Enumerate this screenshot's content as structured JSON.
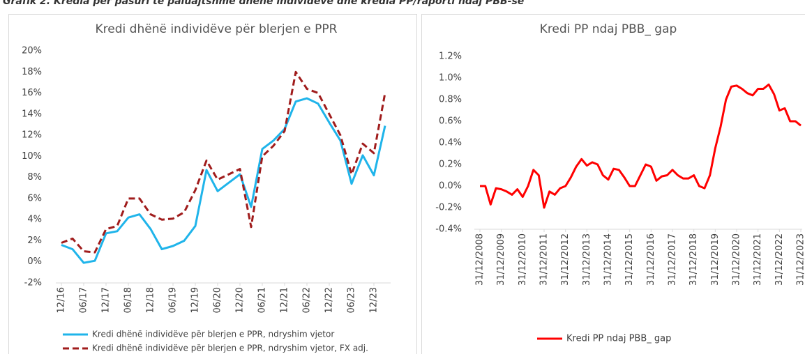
{
  "caption": "Grafik 2. Kredia për pasuri të paluajtshme dhënë individëve dhe kredia PP/raporti ndaj PBB-së",
  "chart_data": [
    {
      "type": "line",
      "title": "Kredi dhënë individëve për blerjen e PPR",
      "categories": [
        "12/16",
        null,
        "06/17",
        null,
        "12/17",
        null,
        "06/18",
        null,
        "12/18",
        null,
        "06/19",
        null,
        "12/19",
        null,
        "06/20",
        null,
        "12/20",
        null,
        "06/21",
        null,
        "12/21",
        null,
        "06/22",
        null,
        "12/22",
        null,
        "06/23",
        null,
        "12/23",
        null
      ],
      "series": [
        {
          "name": "Kredi dhënë individëve për blerjen e PPR, ndryshim vjetor",
          "color": "#1fb4ea",
          "line_style": "solid",
          "values": [
            1.6,
            1.2,
            -0.1,
            0.1,
            2.7,
            2.9,
            4.2,
            4.5,
            3.1,
            1.2,
            1.5,
            2.0,
            3.4,
            8.7,
            6.7,
            7.5,
            8.3,
            5.2,
            10.7,
            11.5,
            12.6,
            15.2,
            15.5,
            15.0,
            13.2,
            11.5,
            7.4,
            10.1,
            8.2,
            12.9
          ]
        },
        {
          "name": "Kredi dhënë individëve për blerjen e PPR, ndryshim vjetor, FX adj.",
          "color": "#a01c1c",
          "line_style": "dashed",
          "values": [
            1.8,
            2.2,
            1.0,
            0.9,
            3.1,
            3.4,
            6.0,
            6.0,
            4.5,
            4.0,
            4.1,
            4.7,
            6.8,
            9.6,
            7.8,
            8.3,
            8.8,
            3.3,
            10.0,
            11.0,
            12.4,
            18.0,
            16.4,
            16.0,
            14.0,
            12.0,
            8.3,
            11.2,
            10.3,
            16.0
          ]
        }
      ],
      "ylim": [
        -2,
        20
      ],
      "yticks": [
        {
          "value": -2,
          "label": "-2%"
        },
        {
          "value": 0,
          "label": "0%"
        },
        {
          "value": 2,
          "label": "2%"
        },
        {
          "value": 4,
          "label": "4%"
        },
        {
          "value": 6,
          "label": "6%"
        },
        {
          "value": 8,
          "label": "8%"
        },
        {
          "value": 10,
          "label": "10%"
        },
        {
          "value": 12,
          "label": "12%"
        },
        {
          "value": 14,
          "label": "14%"
        },
        {
          "value": 16,
          "label": "16%"
        },
        {
          "value": 18,
          "label": "18%"
        },
        {
          "value": 20,
          "label": "20%"
        }
      ],
      "grid": false,
      "legend": "bottom"
    },
    {
      "type": "line",
      "title": "Kredi PP ndaj PBB_ gap",
      "categories": [
        "31/12/2008",
        null,
        null,
        null,
        "31/12/2009",
        null,
        null,
        null,
        "31/12/2010",
        null,
        null,
        null,
        "31/12/2011",
        null,
        null,
        null,
        "31/12/2012",
        null,
        null,
        null,
        "31/12/2013",
        null,
        null,
        null,
        "31/12/2014",
        null,
        null,
        null,
        "31/12/2015",
        null,
        null,
        null,
        "31/12/2016",
        null,
        null,
        null,
        "31/12/2017",
        null,
        null,
        null,
        "31/12/2018",
        null,
        null,
        null,
        "31/12/2019",
        null,
        null,
        null,
        "31/12/2020",
        null,
        null,
        null,
        "31/12/2021",
        null,
        null,
        null,
        "31/12/2022",
        null,
        null,
        null,
        "31/12/2023"
      ],
      "series": [
        {
          "name": "Kredi PP ndaj PBB_ gap",
          "color": "#ff0000",
          "line_style": "solid",
          "values": [
            0.0,
            0.0,
            -0.17,
            -0.02,
            -0.03,
            -0.05,
            -0.08,
            -0.03,
            -0.1,
            0.0,
            0.15,
            0.1,
            -0.2,
            -0.05,
            -0.08,
            -0.02,
            0.0,
            0.08,
            0.18,
            0.25,
            0.19,
            0.22,
            0.2,
            0.1,
            0.06,
            0.16,
            0.15,
            0.08,
            0.0,
            0.0,
            0.1,
            0.2,
            0.18,
            0.05,
            0.09,
            0.1,
            0.15,
            0.1,
            0.07,
            0.07,
            0.1,
            0.0,
            -0.02,
            0.1,
            0.35,
            0.55,
            0.8,
            0.92,
            0.93,
            0.9,
            0.86,
            0.84,
            0.9,
            0.9,
            0.94,
            0.85,
            0.7,
            0.72,
            0.6,
            0.6,
            0.56
          ]
        }
      ],
      "ylim": [
        -0.4,
        1.2
      ],
      "yticks": [
        {
          "value": -0.4,
          "label": "-0.4%"
        },
        {
          "value": -0.2,
          "label": "-0.2%"
        },
        {
          "value": 0,
          "label": "0.0%"
        },
        {
          "value": 0.2,
          "label": "0.2%"
        },
        {
          "value": 0.4,
          "label": "0.4%"
        },
        {
          "value": 0.6,
          "label": "0.6%"
        },
        {
          "value": 0.8,
          "label": "0.8%"
        },
        {
          "value": 1.0,
          "label": "1.0%"
        },
        {
          "value": 1.2,
          "label": "1.2%"
        }
      ],
      "grid": false,
      "legend": "bottom"
    }
  ]
}
